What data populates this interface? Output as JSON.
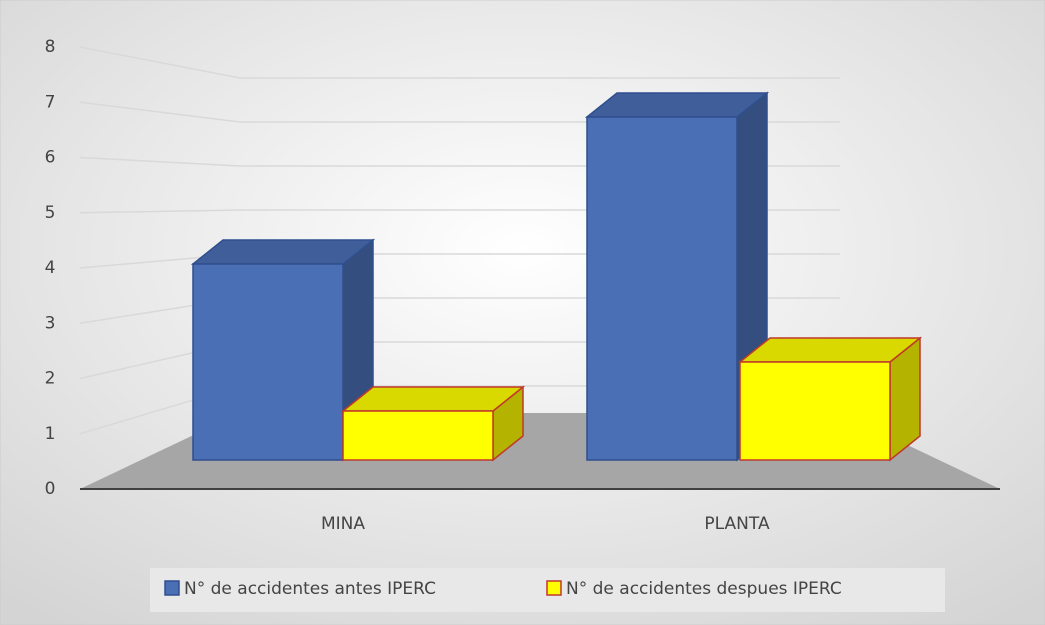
{
  "chart_data": {
    "type": "bar3d",
    "categories": [
      "MINA",
      "PLANTA"
    ],
    "series": [
      {
        "name": "N° de accidentes antes IPERC",
        "color": "#4a6fb5",
        "values": [
          4,
          7
        ]
      },
      {
        "name": "N° de accidentes despues IPERC",
        "color": "#ffff00",
        "values": [
          1,
          2
        ]
      }
    ],
    "ylim": [
      0,
      8
    ],
    "yticks": [
      0,
      1,
      2,
      3,
      4,
      5,
      6,
      7,
      8
    ],
    "grid": true
  }
}
